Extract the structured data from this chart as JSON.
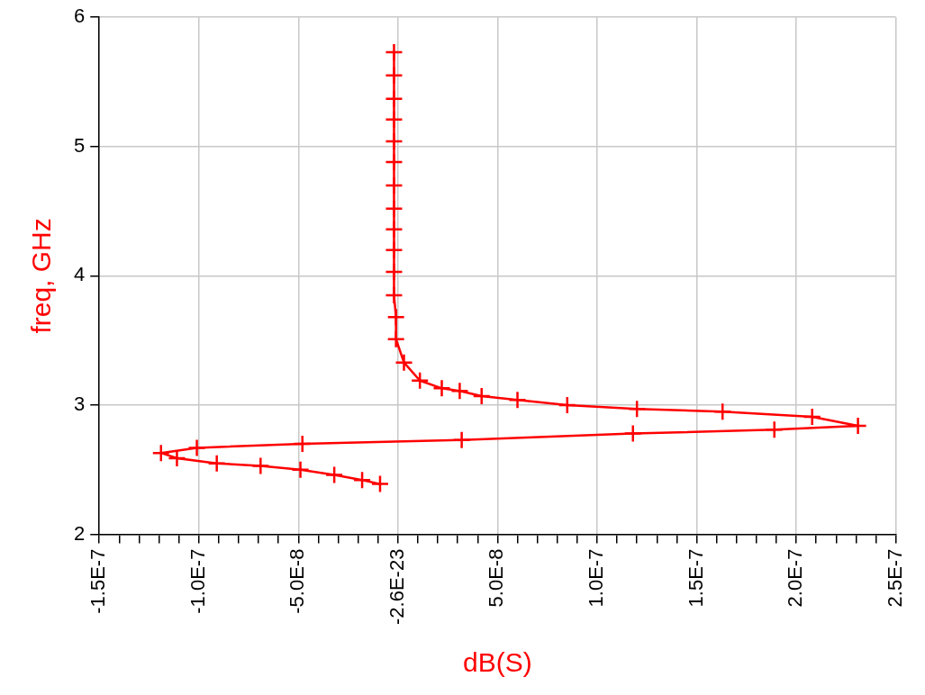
{
  "chart_data": {
    "type": "line",
    "xlabel": "dB(S)",
    "ylabel": "freq, GHz",
    "xlim": [
      -1.5e-07,
      2.5e-07
    ],
    "ylim": [
      2,
      6
    ],
    "xticks": [
      {
        "value": -1.5e-07,
        "label": "-1.5E-7"
      },
      {
        "value": -1.4e-07,
        "label": null
      },
      {
        "value": -1.3e-07,
        "label": null
      },
      {
        "value": -1.2e-07,
        "label": null
      },
      {
        "value": -1.1e-07,
        "label": null
      },
      {
        "value": -1e-07,
        "label": "-1.0E-7"
      },
      {
        "value": -9e-08,
        "label": null
      },
      {
        "value": -8e-08,
        "label": null
      },
      {
        "value": -7e-08,
        "label": null
      },
      {
        "value": -6e-08,
        "label": null
      },
      {
        "value": -5e-08,
        "label": "-5.0E-8"
      },
      {
        "value": -4e-08,
        "label": null
      },
      {
        "value": -3e-08,
        "label": null
      },
      {
        "value": -2e-08,
        "label": null
      },
      {
        "value": -1e-08,
        "label": null
      },
      {
        "value": -2.6e-23,
        "label": "-2.6E-23"
      },
      {
        "value": 1e-08,
        "label": null
      },
      {
        "value": 2e-08,
        "label": null
      },
      {
        "value": 3e-08,
        "label": null
      },
      {
        "value": 4e-08,
        "label": null
      },
      {
        "value": 5e-08,
        "label": "5.0E-8"
      },
      {
        "value": 6e-08,
        "label": null
      },
      {
        "value": 7e-08,
        "label": null
      },
      {
        "value": 8e-08,
        "label": null
      },
      {
        "value": 9e-08,
        "label": null
      },
      {
        "value": 1e-07,
        "label": "1.0E-7"
      },
      {
        "value": 1.1e-07,
        "label": null
      },
      {
        "value": 1.2e-07,
        "label": null
      },
      {
        "value": 1.3e-07,
        "label": null
      },
      {
        "value": 1.4e-07,
        "label": null
      },
      {
        "value": 1.5e-07,
        "label": "1.5E-7"
      },
      {
        "value": 1.6e-07,
        "label": null
      },
      {
        "value": 1.7e-07,
        "label": null
      },
      {
        "value": 1.8e-07,
        "label": null
      },
      {
        "value": 1.9e-07,
        "label": null
      },
      {
        "value": 2e-07,
        "label": "2.0E-7"
      },
      {
        "value": 2.1e-07,
        "label": null
      },
      {
        "value": 2.2e-07,
        "label": null
      },
      {
        "value": 2.3e-07,
        "label": null
      },
      {
        "value": 2.4e-07,
        "label": null
      },
      {
        "value": 2.5e-07,
        "label": "2.5E-7"
      }
    ],
    "yticks": [
      2,
      3,
      4,
      5,
      6
    ],
    "grid": true,
    "marker": "cross",
    "line_style": "solid",
    "series": [
      {
        "color": "#ff0000",
        "x": [
          -9e-09,
          -1.8e-08,
          -3.2e-08,
          -4.9e-08,
          -6.9e-08,
          -9.1e-08,
          -1.11e-07,
          -1.19e-07,
          -1.01e-07,
          -4.8e-08,
          3.2e-08,
          1.18e-07,
          1.89e-07,
          2.31e-07,
          2.08e-07,
          1.63e-07,
          1.2e-07,
          8.5e-08,
          6e-08,
          4.2e-08,
          3.1e-08,
          2.2e-08,
          1.1e-08,
          3e-09,
          -1e-09,
          -1e-09,
          -2e-09,
          -2e-09,
          -2e-09,
          -2e-09,
          -2e-09,
          -2e-09,
          -2e-09,
          -2e-09,
          -2e-09,
          -2e-09,
          -2e-09,
          -2e-09
        ],
        "values": [
          2.39,
          2.42,
          2.46,
          2.5,
          2.53,
          2.55,
          2.59,
          2.63,
          2.67,
          2.7,
          2.73,
          2.78,
          2.81,
          2.84,
          2.91,
          2.95,
          2.97,
          3.0,
          3.04,
          3.07,
          3.11,
          3.13,
          3.19,
          3.33,
          3.51,
          3.68,
          3.85,
          4.03,
          4.2,
          4.36,
          4.52,
          4.7,
          4.88,
          5.04,
          5.21,
          5.37,
          5.55,
          5.73
        ]
      }
    ]
  }
}
